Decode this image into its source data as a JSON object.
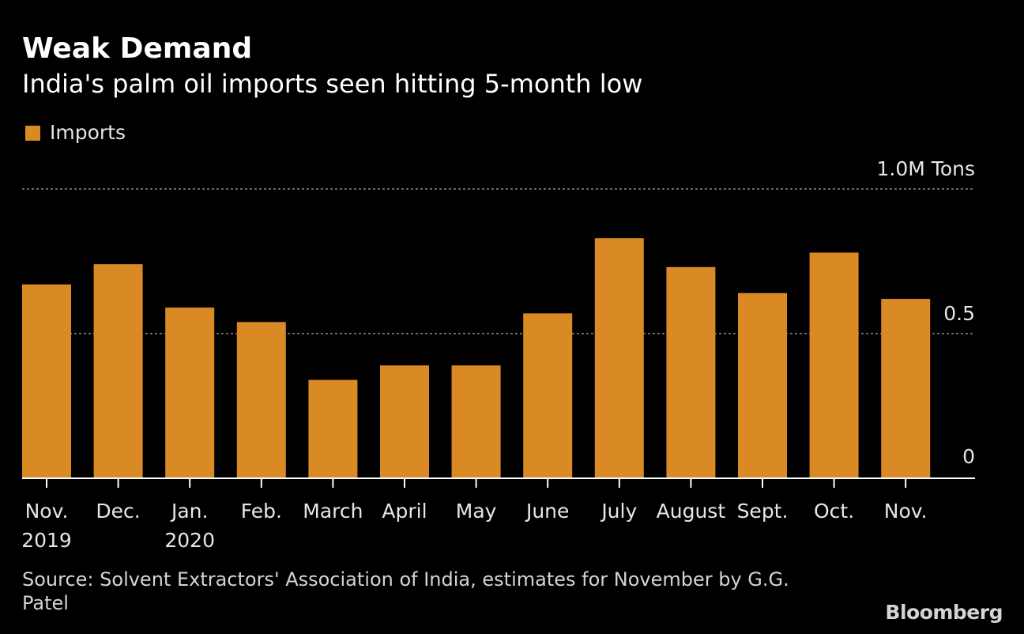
{
  "header": {
    "title": "Weak Demand",
    "subtitle": "India's palm oil imports seen hitting 5-month low"
  },
  "legend": {
    "label": "Imports"
  },
  "colors": {
    "background": "#000000",
    "bar": "#d98a24",
    "grid": "#8c8c8c",
    "axis": "#ffffff",
    "text": "#ffffff"
  },
  "chart_data": {
    "type": "bar",
    "title": "Weak Demand",
    "subtitle": "India's palm oil imports seen hitting 5-month low",
    "categories": [
      [
        "Nov.",
        "2019"
      ],
      [
        "Dec."
      ],
      [
        "Jan.",
        "2020"
      ],
      [
        "Feb."
      ],
      [
        "March"
      ],
      [
        "April"
      ],
      [
        "May"
      ],
      [
        "June"
      ],
      [
        "July"
      ],
      [
        "August"
      ],
      [
        "Sept."
      ],
      [
        "Oct."
      ],
      [
        "Nov."
      ]
    ],
    "series": [
      {
        "name": "Imports",
        "values": [
          0.67,
          0.74,
          0.59,
          0.54,
          0.34,
          0.39,
          0.39,
          0.57,
          0.83,
          0.73,
          0.64,
          0.78,
          0.62
        ]
      }
    ],
    "ylim": [
      0,
      1.0
    ],
    "yticks": [
      {
        "value": 0,
        "label": "0"
      },
      {
        "value": 0.5,
        "label": "0.5"
      },
      {
        "value": 1.0,
        "label": "1.0M Tons"
      }
    ],
    "y_axis_side": "right",
    "grid": true,
    "legend_position": "top-left"
  },
  "footer": {
    "source": "Source: Solvent Extractors' Association of India, estimates for November by G.G. Patel",
    "brand": "Bloomberg"
  }
}
